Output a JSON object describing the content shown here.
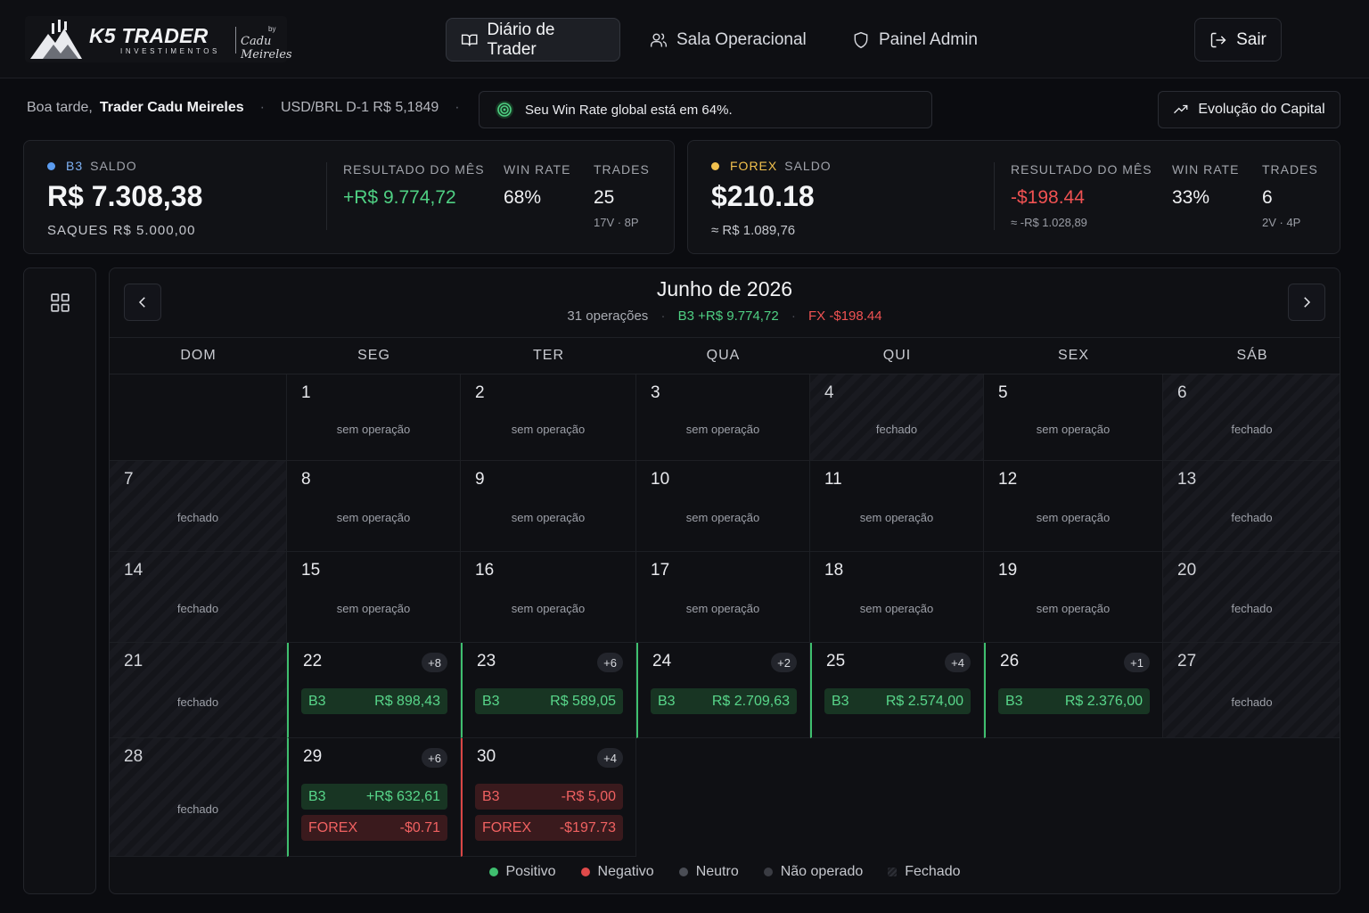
{
  "brand": {
    "name": "K5 TRADER",
    "sub": "INVESTIMENTOS",
    "by": "by",
    "signature": "Cadu Meireles"
  },
  "nav": {
    "diario": "Diário de Trader",
    "sala": "Sala Operacional",
    "admin": "Painel Admin",
    "logout": "Sair"
  },
  "greeting": {
    "prefix": "Boa tarde,",
    "name": "Trader Cadu Meireles",
    "fx": "USD/BRL D-1 R$ 5,1849",
    "winrate_msg": "Seu Win Rate global está em 64%.",
    "capital_btn": "Evolução do Capital"
  },
  "b3": {
    "market": "B3",
    "saldo_label": "SALDO",
    "saldo": "R$ 7.308,38",
    "saques_label": "SAQUES",
    "saques": "R$ 5.000,00",
    "res_label": "RESULTADO DO MÊS",
    "res": "+R$ 9.774,72",
    "wr_label": "WIN RATE",
    "wr": "68%",
    "tr_label": "TRADES",
    "tr": "25",
    "tr_sub": "17V · 8P",
    "color": "#5b9cf0"
  },
  "forex": {
    "market": "FOREX",
    "saldo_label": "SALDO",
    "saldo": "$210.18",
    "saldo_sub": "≈ R$ 1.089,76",
    "res_label": "RESULTADO DO MÊS",
    "res": "-$198.44",
    "res_sub": "≈ -R$ 1.028,89",
    "wr_label": "WIN RATE",
    "wr": "33%",
    "tr_label": "TRADES",
    "tr": "6",
    "tr_sub": "2V · 4P",
    "color": "#f2c14e"
  },
  "calendar": {
    "month": "Junho de 2026",
    "ops": "31 operações",
    "b3_total": "B3 +R$ 9.774,72",
    "fx_total": "FX -$198.44",
    "weekdays": [
      "DOM",
      "SEG",
      "TER",
      "QUA",
      "QUI",
      "SEX",
      "SÁB"
    ],
    "days": [
      {
        "d": "",
        "t": "empty"
      },
      {
        "d": "1",
        "t": "none",
        "note": "sem operação"
      },
      {
        "d": "2",
        "t": "none",
        "note": "sem operação"
      },
      {
        "d": "3",
        "t": "none",
        "note": "sem operação"
      },
      {
        "d": "4",
        "t": "closed",
        "note": "fechado"
      },
      {
        "d": "5",
        "t": "none",
        "note": "sem operação"
      },
      {
        "d": "6",
        "t": "closed",
        "note": "fechado"
      },
      {
        "d": "7",
        "t": "closed",
        "note": "fechado"
      },
      {
        "d": "8",
        "t": "none",
        "note": "sem operação"
      },
      {
        "d": "9",
        "t": "none",
        "note": "sem operação"
      },
      {
        "d": "10",
        "t": "none",
        "note": "sem operação"
      },
      {
        "d": "11",
        "t": "none",
        "note": "sem operação"
      },
      {
        "d": "12",
        "t": "none",
        "note": "sem operação"
      },
      {
        "d": "13",
        "t": "closed",
        "note": "fechado"
      },
      {
        "d": "14",
        "t": "closed",
        "note": "fechado"
      },
      {
        "d": "15",
        "t": "none",
        "note": "sem operação"
      },
      {
        "d": "16",
        "t": "none",
        "note": "sem operação"
      },
      {
        "d": "17",
        "t": "none",
        "note": "sem operação"
      },
      {
        "d": "18",
        "t": "none",
        "note": "sem operação"
      },
      {
        "d": "19",
        "t": "none",
        "note": "sem operação"
      },
      {
        "d": "20",
        "t": "closed",
        "note": "fechado"
      },
      {
        "d": "21",
        "t": "closed",
        "note": "fechado"
      },
      {
        "d": "22",
        "t": "pos",
        "badge": "+8",
        "entries": [
          {
            "m": "B3",
            "v": "R$ 898,43",
            "c": "g"
          }
        ]
      },
      {
        "d": "23",
        "t": "pos",
        "badge": "+6",
        "entries": [
          {
            "m": "B3",
            "v": "R$ 589,05",
            "c": "g"
          }
        ]
      },
      {
        "d": "24",
        "t": "pos",
        "badge": "+2",
        "entries": [
          {
            "m": "B3",
            "v": "R$ 2.709,63",
            "c": "g"
          }
        ]
      },
      {
        "d": "25",
        "t": "pos",
        "badge": "+4",
        "entries": [
          {
            "m": "B3",
            "v": "R$ 2.574,00",
            "c": "g"
          }
        ]
      },
      {
        "d": "26",
        "t": "pos",
        "badge": "+1",
        "entries": [
          {
            "m": "B3",
            "v": "R$ 2.376,00",
            "c": "g"
          }
        ]
      },
      {
        "d": "27",
        "t": "closed",
        "note": "fechado"
      },
      {
        "d": "28",
        "t": "closed",
        "note": "fechado"
      },
      {
        "d": "29",
        "t": "pos",
        "badge": "+6",
        "entries": [
          {
            "m": "B3",
            "v": "+R$ 632,61",
            "c": "g"
          },
          {
            "m": "FOREX",
            "v": "-$0.71",
            "c": "r"
          }
        ]
      },
      {
        "d": "30",
        "t": "neg",
        "badge": "+4",
        "entries": [
          {
            "m": "B3",
            "v": "-R$ 5,00",
            "c": "r"
          },
          {
            "m": "FOREX",
            "v": "-$197.73",
            "c": "r"
          }
        ]
      }
    ]
  },
  "legend": [
    {
      "label": "Positivo",
      "color": "#3fbf6f"
    },
    {
      "label": "Negativo",
      "color": "#e04a4a"
    },
    {
      "label": "Neutro",
      "color": "#4a4d55"
    },
    {
      "label": "Não operado",
      "color": "#3a3c43"
    },
    {
      "label": "Fechado",
      "color": "stripe"
    }
  ]
}
